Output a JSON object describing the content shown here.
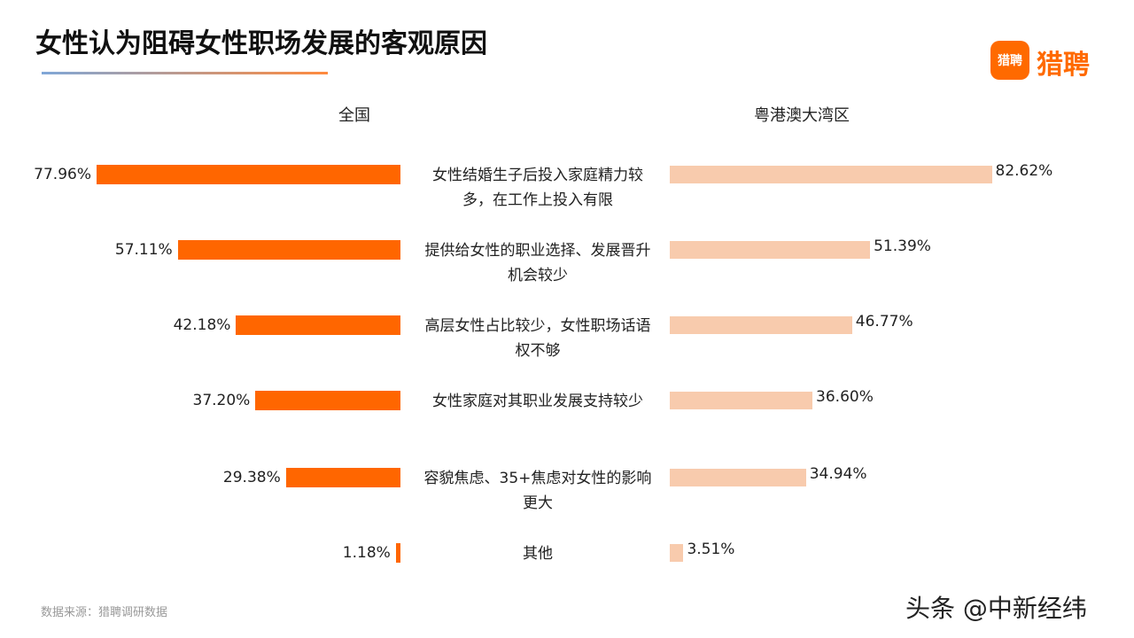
{
  "chart_data": {
    "type": "butterfly",
    "title": "女性认为阻碍女性职场发展的客观原因",
    "categories": [
      "女性结婚生子后投入家庭精力较多，在工作上投入有限",
      "提供给女性的职业选择、发展晋升机会较少",
      "高层女性占比较少，女性职场话语权不够",
      "女性家庭对其职业发展支持较少",
      "容貌焦虑、35+焦虑对女性的影响更大",
      "其他"
    ],
    "series": [
      {
        "name": "全国",
        "color": "#ff6600",
        "values": [
          77.96,
          57.11,
          42.18,
          37.2,
          29.38,
          1.18
        ],
        "value_labels": [
          "77.96%",
          "57.11%",
          "42.18%",
          "37.20%",
          "29.38%",
          "1.18%"
        ]
      },
      {
        "name": "粤港澳大湾区",
        "color": "#f8cbad",
        "values": [
          82.62,
          51.39,
          46.77,
          36.6,
          34.94,
          3.51
        ],
        "value_labels": [
          "82.62%",
          "51.39%",
          "46.77%",
          "36.60%",
          "34.94%",
          "3.51%"
        ]
      }
    ],
    "source": "数据来源：猎聘调研数据"
  },
  "logo": {
    "icon": "猎聘",
    "text": "猎聘"
  },
  "watermark": "头条 @中新经纬"
}
